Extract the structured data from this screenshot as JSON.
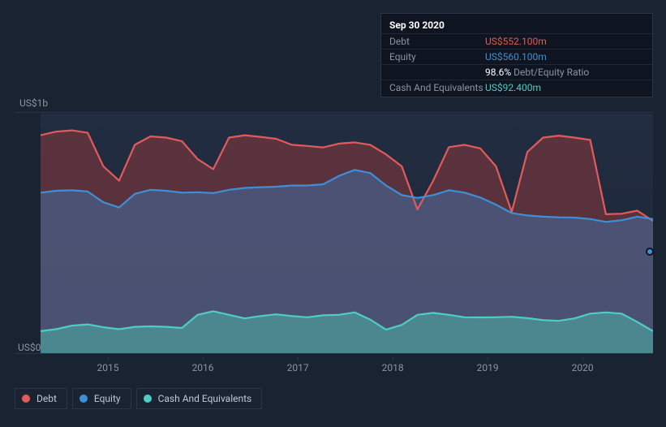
{
  "chart": {
    "type": "area",
    "background_gradient": [
      "#232d41",
      "#1c2537"
    ],
    "page_background": "#1a2332",
    "grid_color": "#2a3548",
    "axis_label_color": "#8a94a6",
    "y_top_label": "US$1b",
    "y_bot_label": "US$0",
    "y_domain": [
      0,
      1000
    ],
    "x_years": [
      "2015",
      "2016",
      "2017",
      "2018",
      "2019",
      "2020"
    ],
    "x_year_positions": [
      0.11,
      0.265,
      0.42,
      0.575,
      0.73,
      0.885
    ],
    "series": {
      "debt": {
        "label": "Debt",
        "stroke": "#e15b5b",
        "fill": "rgba(160,60,60,0.45)",
        "stroke_width": 2.2,
        "values": [
          910,
          925,
          930,
          920,
          780,
          720,
          870,
          905,
          900,
          885,
          810,
          768,
          900,
          910,
          903,
          895,
          870,
          865,
          859,
          875,
          880,
          870,
          830,
          780,
          600,
          720,
          860,
          870,
          855,
          780,
          590,
          840,
          900,
          908,
          900,
          890,
          580,
          582,
          595,
          552
        ]
      },
      "equity": {
        "label": "Equity",
        "stroke": "#3f8fd6",
        "fill": "rgba(63,110,160,0.55)",
        "stroke_width": 2.2,
        "values": [
          670,
          678,
          680,
          675,
          630,
          608,
          665,
          682,
          678,
          670,
          672,
          668,
          682,
          690,
          693,
          695,
          700,
          700,
          705,
          740,
          765,
          752,
          700,
          660,
          648,
          660,
          680,
          670,
          650,
          620,
          585,
          575,
          570,
          567,
          566,
          560,
          548,
          555,
          570,
          560
        ]
      },
      "cash": {
        "label": "Cash And Equivalents",
        "stroke": "#4ecdc4",
        "fill": "rgba(78,180,170,0.55)",
        "stroke_width": 2.2,
        "values": [
          92,
          100,
          115,
          120,
          108,
          100,
          110,
          112,
          110,
          105,
          160,
          175,
          160,
          145,
          155,
          162,
          155,
          150,
          158,
          160,
          170,
          140,
          98,
          118,
          160,
          168,
          160,
          150,
          149,
          150,
          152,
          146,
          138,
          135,
          145,
          165,
          170,
          165,
          130,
          92
        ]
      }
    }
  },
  "tooltip": {
    "date": "Sep 30 2020",
    "debt_label": "Debt",
    "debt_value": "US$552.100m",
    "equity_label": "Equity",
    "equity_value": "US$560.100m",
    "ratio_value": "98.6%",
    "ratio_label": "Debt/Equity Ratio",
    "cash_label": "Cash And Equivalents",
    "cash_value": "US$92.400m"
  },
  "legend": {
    "debt": {
      "label": "Debt",
      "color": "#e15b5b"
    },
    "equity": {
      "label": "Equity",
      "color": "#3f8fd6"
    },
    "cash": {
      "label": "Cash And Equivalents",
      "color": "#4ecdc4"
    }
  }
}
